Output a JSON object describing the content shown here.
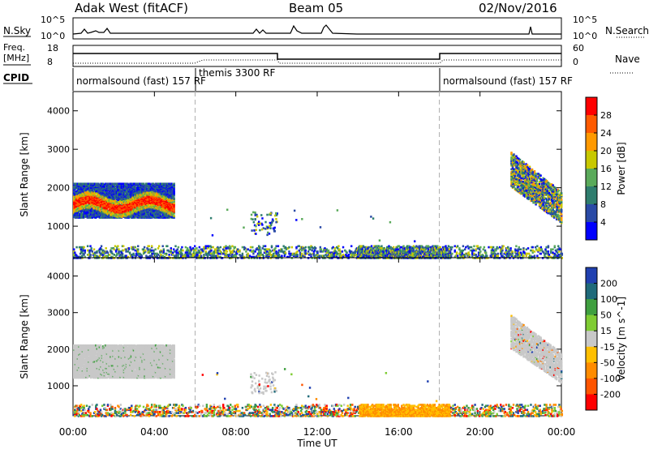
{
  "header": {
    "radar": "Adak West (fitACF)",
    "beam": "Beam 05",
    "date": "02/Nov/2016"
  },
  "strip_labels": {
    "nsky": "N.Sky",
    "nsky_ticks": [
      "10^5",
      "10^0"
    ],
    "nsearch": "N.Search",
    "nsearch_ticks": [
      "10^5",
      "10^0"
    ],
    "freq": "Freq.",
    "freq_unit": "[MHz]",
    "freq_ticks": [
      "18",
      "8"
    ],
    "nave": "Nave",
    "nave_ticks": [
      "60",
      "0"
    ],
    "cpid": "CPID"
  },
  "cpid_segments": [
    {
      "label": "normalsound (fast)  157 RF",
      "start_hour": 0
    },
    {
      "label": "themis  3300 RF",
      "start_hour": 6
    },
    {
      "label": "normalsound (fast)  157 RF",
      "start_hour": 18
    }
  ],
  "colors": {
    "power": [
      "#0000ff",
      "#2a4aa6",
      "#2f7d6e",
      "#5aaa5a",
      "#c8c800",
      "#ff9900",
      "#ff5a00",
      "#ff0000"
    ],
    "velocity": [
      "#ff0000",
      "#ff5500",
      "#ff8c00",
      "#ffbf00",
      "#c8c8c8",
      "#7fcc33",
      "#3f9f3f",
      "#1f6a7a",
      "#2040b0"
    ],
    "ground": "#c8c8c8",
    "dash": "#b0b0b0"
  },
  "chart_data": [
    {
      "type": "heatmap",
      "title": "",
      "xlabel": "",
      "ylabel": "Slant Range [km]",
      "xlim": [
        0,
        24
      ],
      "ylim": [
        180,
        4500
      ],
      "yticks": [
        1000,
        2000,
        3000,
        4000
      ],
      "xticks": [
        "00:00",
        "04:00",
        "08:00",
        "12:00",
        "16:00",
        "20:00",
        "00:00"
      ],
      "xtick_hours": [
        0,
        4,
        8,
        12,
        16,
        20,
        24
      ],
      "dashed_hours": [
        6,
        18
      ],
      "colorbar": {
        "label": "Power [dB]",
        "ticks": [
          "4",
          "8",
          "12",
          "16",
          "20",
          "24",
          "28"
        ]
      },
      "regions": [
        {
          "x": [
            0,
            4.9
          ],
          "y": [
            1300,
            2100
          ],
          "value": "12–28 dB"
        },
        {
          "x": [
            8.7,
            10.0
          ],
          "y": [
            800,
            1400
          ],
          "value": "4–16 dB"
        },
        {
          "x": [
            21.5,
            24
          ],
          "y": [
            1600,
            2950
          ],
          "value": "4–20 dB"
        },
        {
          "x": [
            0,
            24
          ],
          "y": [
            180,
            500
          ],
          "value": "4–16 dB"
        }
      ]
    },
    {
      "type": "heatmap",
      "title": "",
      "xlabel": "Time UT",
      "ylabel": "Slant Range [km]",
      "xlim": [
        0,
        24
      ],
      "ylim": [
        180,
        4500
      ],
      "yticks": [
        1000,
        2000,
        3000,
        4000
      ],
      "xticks": [
        "00:00",
        "04:00",
        "08:00",
        "12:00",
        "16:00",
        "20:00",
        "00:00"
      ],
      "xtick_hours": [
        0,
        4,
        8,
        12,
        16,
        20,
        24
      ],
      "dashed_hours": [
        6,
        18
      ],
      "colorbar": {
        "label": "Velocity [m s^-1]",
        "ticks": [
          "200",
          "100",
          "50",
          "15",
          "-15",
          "-50",
          "-100",
          "-200"
        ]
      },
      "regions": [
        {
          "x": [
            0,
            4.9
          ],
          "y": [
            1300,
            2100
          ],
          "value": "ground scatter"
        },
        {
          "x": [
            21.5,
            24
          ],
          "y": [
            1600,
            2950
          ],
          "value": "ground scatter"
        },
        {
          "x": [
            0,
            24
          ],
          "y": [
            180,
            500
          ],
          "value": "-50 to 50 m/s"
        }
      ]
    }
  ]
}
